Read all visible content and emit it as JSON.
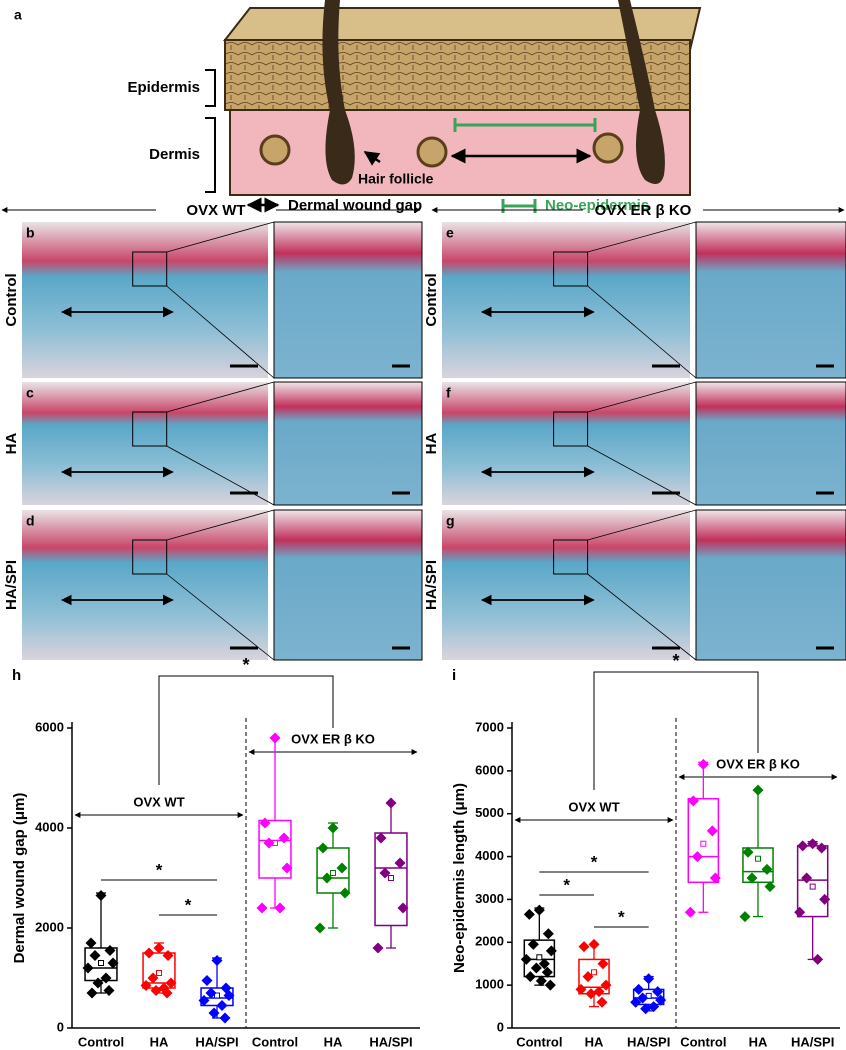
{
  "figure": {
    "panel_a": {
      "label": "a",
      "epidermis": "Epidermis",
      "dermis": "Dermis",
      "hair_follicle": "Hair follicle",
      "dermal_wound_gap": "Dermal wound gap",
      "neo_epidermis": "Neo-epidermis"
    },
    "histology": {
      "groups": [
        "OVX WT",
        "OVX ER β KO"
      ],
      "rows": [
        "Control",
        "HA",
        "HA/SPI"
      ],
      "panel_labels": [
        [
          "b",
          "c",
          "d"
        ],
        [
          "e",
          "f",
          "g"
        ]
      ]
    }
  },
  "chart_data": [
    {
      "type": "box",
      "panel_label": "h",
      "ylabel": "Dermal wound gap (μm)",
      "ylim": [
        0,
        6000
      ],
      "yticks": [
        0,
        2000,
        4000,
        6000
      ],
      "categories": [
        "Control",
        "HA",
        "HA/SPI",
        "Control",
        "HA",
        "HA/SPI"
      ],
      "groups": [
        {
          "label": "OVX WT",
          "size": 3
        },
        {
          "label": "OVX ER β KO",
          "size": 3
        }
      ],
      "boxes": [
        {
          "color": "#000000",
          "whisker_low": 700,
          "q1": 950,
          "median": 1200,
          "q3": 1600,
          "whisker_high": 2700,
          "mean": 1300,
          "points": [
            2650,
            1700,
            1550,
            1450,
            1300,
            1200,
            1000,
            900,
            750,
            700
          ]
        },
        {
          "color": "#ff0000",
          "whisker_low": 700,
          "q1": 800,
          "median": 900,
          "q3": 1500,
          "whisker_high": 1700,
          "mean": 1100,
          "points": [
            1600,
            1500,
            1450,
            1000,
            900,
            850,
            800,
            750,
            700
          ]
        },
        {
          "color": "#0000ff",
          "whisker_low": 200,
          "q1": 450,
          "median": 600,
          "q3": 800,
          "whisker_high": 1400,
          "mean": 650,
          "points": [
            1350,
            950,
            800,
            700,
            650,
            550,
            450,
            300,
            200
          ]
        },
        {
          "color": "#ff00ff",
          "whisker_low": 2400,
          "q1": 3000,
          "median": 3750,
          "q3": 4150,
          "whisker_high": 5800,
          "mean": 3700,
          "points": [
            5800,
            4100,
            3800,
            3700,
            3200,
            2400,
            2400
          ]
        },
        {
          "color": "#008000",
          "whisker_low": 2000,
          "q1": 2700,
          "median": 3000,
          "q3": 3600,
          "whisker_high": 4100,
          "mean": 3100,
          "points": [
            4000,
            3600,
            3200,
            3000,
            2700,
            2000
          ]
        },
        {
          "color": "#800080",
          "whisker_low": 1600,
          "q1": 2050,
          "median": 3200,
          "q3": 3900,
          "whisker_high": 4500,
          "mean": 3000,
          "points": [
            4500,
            3800,
            3300,
            3100,
            2400,
            1600
          ]
        }
      ],
      "significance": [
        {
          "pair": [
            0,
            2
          ],
          "label": "*"
        },
        {
          "pair": [
            1,
            2
          ],
          "label": "*"
        }
      ],
      "group_significance": "*"
    },
    {
      "type": "box",
      "panel_label": "i",
      "ylabel": "Neo-epidermis length (μm)",
      "ylim": [
        0,
        7000
      ],
      "yticks": [
        0,
        1000,
        2000,
        3000,
        4000,
        5000,
        6000,
        7000
      ],
      "categories": [
        "Control",
        "HA",
        "HA/SPI",
        "Control",
        "HA",
        "HA/SPI"
      ],
      "groups": [
        {
          "label": "OVX WT",
          "size": 3
        },
        {
          "label": "OVX ER β KO",
          "size": 3
        }
      ],
      "boxes": [
        {
          "color": "#000000",
          "whisker_low": 1000,
          "q1": 1200,
          "median": 1600,
          "q3": 2050,
          "whisker_high": 2800,
          "mean": 1650,
          "points": [
            2750,
            2650,
            2200,
            1950,
            1800,
            1600,
            1500,
            1400,
            1300,
            1200,
            1100,
            1000
          ]
        },
        {
          "color": "#ff0000",
          "whisker_low": 500,
          "q1": 800,
          "median": 950,
          "q3": 1600,
          "whisker_high": 1950,
          "mean": 1300,
          "points": [
            1950,
            1900,
            1500,
            1200,
            1000,
            900,
            850,
            800,
            600
          ]
        },
        {
          "color": "#0000ff",
          "whisker_low": 400,
          "q1": 550,
          "median": 700,
          "q3": 900,
          "whisker_high": 1200,
          "mean": 750,
          "points": [
            1150,
            900,
            850,
            700,
            650,
            600,
            500,
            450
          ]
        },
        {
          "color": "#ff00ff",
          "whisker_low": 2700,
          "q1": 3400,
          "median": 4000,
          "q3": 5350,
          "whisker_high": 6200,
          "mean": 4300,
          "points": [
            6150,
            5300,
            4600,
            4000,
            3500,
            2700
          ]
        },
        {
          "color": "#008000",
          "whisker_low": 2600,
          "q1": 3400,
          "median": 3650,
          "q3": 4200,
          "whisker_high": 5550,
          "mean": 3950,
          "points": [
            5550,
            4100,
            3700,
            3500,
            3300,
            2600
          ]
        },
        {
          "color": "#800080",
          "whisker_low": 1600,
          "q1": 2600,
          "median": 3450,
          "q3": 4250,
          "whisker_high": 4350,
          "mean": 3300,
          "points": [
            4300,
            4250,
            4200,
            3500,
            3000,
            2700,
            1600
          ]
        }
      ],
      "significance": [
        {
          "pair": [
            0,
            1
          ],
          "label": "*"
        },
        {
          "pair": [
            0,
            2
          ],
          "label": "*"
        },
        {
          "pair": [
            1,
            2
          ],
          "label": "*"
        }
      ],
      "group_significance": "*"
    }
  ]
}
